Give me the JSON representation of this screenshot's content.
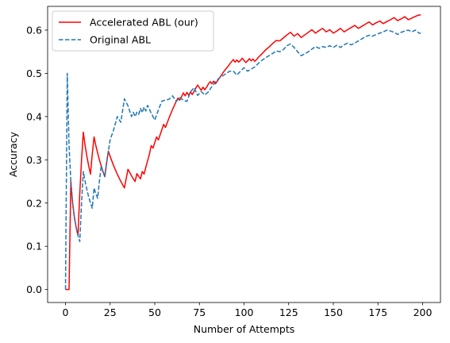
{
  "chart_data": {
    "type": "line",
    "title": "",
    "xlabel": "Number of Attempts",
    "ylabel": "Accuracy",
    "xlim": [
      -10,
      210
    ],
    "ylim": [
      -0.03,
      0.655
    ],
    "xticks": [
      0,
      25,
      50,
      75,
      100,
      125,
      150,
      175,
      200
    ],
    "xtick_labels": [
      "0",
      "25",
      "50",
      "75",
      "100",
      "125",
      "150",
      "175",
      "200"
    ],
    "yticks": [
      0.0,
      0.1,
      0.2,
      0.3,
      0.4,
      0.5,
      0.6
    ],
    "ytick_labels": [
      "0.0",
      "0.1",
      "0.2",
      "0.3",
      "0.4",
      "0.5",
      "0.6"
    ],
    "grid": false,
    "legend_position": "top-left",
    "series": [
      {
        "name": "Accelerated ABL (our)",
        "color": "#ff0000",
        "style": "solid",
        "x": [
          0,
          1,
          2,
          3,
          4,
          5,
          6,
          7,
          8,
          9,
          10,
          11,
          12,
          13,
          14,
          15,
          16,
          17,
          18,
          19,
          20,
          21,
          22,
          23,
          24,
          25,
          27,
          29,
          31,
          33,
          35,
          37,
          38,
          39,
          40,
          41,
          42,
          43,
          44,
          45,
          46,
          47,
          48,
          49,
          50,
          51,
          52,
          53,
          54,
          55,
          56,
          57,
          58,
          59,
          60,
          61,
          62,
          63,
          64,
          65,
          66,
          67,
          68,
          69,
          70,
          71,
          72,
          73,
          74,
          75,
          76,
          77,
          78,
          79,
          80,
          81,
          82,
          83,
          84,
          85,
          86,
          87,
          88,
          89,
          90,
          91,
          92,
          93,
          94,
          95,
          96,
          97,
          98,
          99,
          100,
          101,
          102,
          103,
          104,
          105,
          106,
          107,
          108,
          109,
          110,
          112,
          114,
          116,
          118,
          120,
          122,
          124,
          126,
          128,
          130,
          132,
          134,
          136,
          138,
          140,
          142,
          144,
          146,
          148,
          150,
          152,
          154,
          156,
          158,
          160,
          162,
          164,
          166,
          168,
          170,
          172,
          174,
          176,
          178,
          180,
          182,
          184,
          186,
          188,
          190,
          192,
          194,
          196,
          198,
          199
        ],
        "y": [
          0.0,
          0.0,
          0.0,
          0.25,
          0.2,
          0.167,
          0.143,
          0.125,
          0.222,
          0.3,
          0.364,
          0.333,
          0.308,
          0.286,
          0.267,
          0.313,
          0.353,
          0.333,
          0.316,
          0.3,
          0.286,
          0.273,
          0.261,
          0.292,
          0.32,
          0.308,
          0.286,
          0.267,
          0.25,
          0.235,
          0.278,
          0.263,
          0.256,
          0.25,
          0.268,
          0.262,
          0.256,
          0.273,
          0.267,
          0.283,
          0.298,
          0.313,
          0.333,
          0.327,
          0.34,
          0.353,
          0.346,
          0.358,
          0.37,
          0.382,
          0.375,
          0.386,
          0.397,
          0.407,
          0.417,
          0.426,
          0.435,
          0.443,
          0.438,
          0.446,
          0.455,
          0.448,
          0.456,
          0.449,
          0.457,
          0.451,
          0.458,
          0.466,
          0.473,
          0.467,
          0.461,
          0.468,
          0.462,
          0.468,
          0.475,
          0.481,
          0.476,
          0.482,
          0.476,
          0.482,
          0.488,
          0.494,
          0.5,
          0.506,
          0.511,
          0.516,
          0.522,
          0.527,
          0.532,
          0.526,
          0.531,
          0.526,
          0.53,
          0.535,
          0.53,
          0.525,
          0.529,
          0.534,
          0.529,
          0.533,
          0.528,
          0.532,
          0.537,
          0.541,
          0.545,
          0.554,
          0.561,
          0.569,
          0.576,
          0.575,
          0.582,
          0.589,
          0.595,
          0.586,
          0.592,
          0.583,
          0.589,
          0.595,
          0.601,
          0.593,
          0.599,
          0.604,
          0.596,
          0.601,
          0.593,
          0.598,
          0.604,
          0.596,
          0.601,
          0.606,
          0.611,
          0.604,
          0.609,
          0.614,
          0.619,
          0.612,
          0.617,
          0.621,
          0.615,
          0.62,
          0.624,
          0.629,
          0.622,
          0.626,
          0.631,
          0.624,
          0.628,
          0.632,
          0.635,
          0.635
        ]
      },
      {
        "name": "Original ABL",
        "color": "#1f77b4",
        "style": "dashed",
        "x": [
          0,
          1,
          2,
          3,
          4,
          5,
          6,
          7,
          8,
          9,
          10,
          11,
          12,
          13,
          14,
          15,
          16,
          17,
          18,
          19,
          20,
          21,
          22,
          23,
          24,
          25,
          27,
          29,
          31,
          33,
          35,
          37,
          38,
          39,
          40,
          41,
          42,
          43,
          44,
          45,
          46,
          47,
          48,
          49,
          50,
          52,
          54,
          56,
          58,
          60,
          62,
          64,
          66,
          68,
          70,
          72,
          74,
          76,
          78,
          80,
          82,
          84,
          86,
          88,
          90,
          92,
          94,
          96,
          98,
          100,
          102,
          104,
          106,
          108,
          110,
          112,
          114,
          116,
          118,
          120,
          122,
          124,
          126,
          128,
          130,
          132,
          134,
          136,
          138,
          140,
          142,
          144,
          146,
          148,
          150,
          152,
          154,
          156,
          158,
          160,
          162,
          164,
          166,
          168,
          170,
          172,
          174,
          176,
          178,
          180,
          182,
          184,
          186,
          188,
          190,
          192,
          194,
          196,
          198,
          199
        ],
        "y": [
          0.0,
          0.5,
          0.333,
          0.25,
          0.2,
          0.167,
          0.143,
          0.125,
          0.111,
          0.2,
          0.273,
          0.25,
          0.231,
          0.214,
          0.2,
          0.188,
          0.235,
          0.222,
          0.211,
          0.25,
          0.286,
          0.273,
          0.261,
          0.292,
          0.32,
          0.346,
          0.37,
          0.4,
          0.387,
          0.441,
          0.425,
          0.4,
          0.41,
          0.4,
          0.41,
          0.405,
          0.419,
          0.409,
          0.422,
          0.413,
          0.426,
          0.417,
          0.408,
          0.4,
          0.392,
          0.415,
          0.436,
          0.438,
          0.44,
          0.448,
          0.435,
          0.444,
          0.438,
          0.435,
          0.457,
          0.467,
          0.449,
          0.458,
          0.45,
          0.457,
          0.47,
          0.48,
          0.489,
          0.494,
          0.5,
          0.505,
          0.505,
          0.496,
          0.505,
          0.513,
          0.505,
          0.51,
          0.515,
          0.523,
          0.53,
          0.536,
          0.541,
          0.546,
          0.552,
          0.55,
          0.555,
          0.564,
          0.568,
          0.56,
          0.55,
          0.541,
          0.545,
          0.55,
          0.556,
          0.562,
          0.558,
          0.562,
          0.56,
          0.564,
          0.56,
          0.565,
          0.56,
          0.566,
          0.57,
          0.566,
          0.57,
          0.575,
          0.58,
          0.585,
          0.588,
          0.586,
          0.59,
          0.593,
          0.596,
          0.6,
          0.598,
          0.595,
          0.59,
          0.595,
          0.598,
          0.6,
          0.596,
          0.6,
          0.593,
          0.593
        ]
      }
    ]
  }
}
